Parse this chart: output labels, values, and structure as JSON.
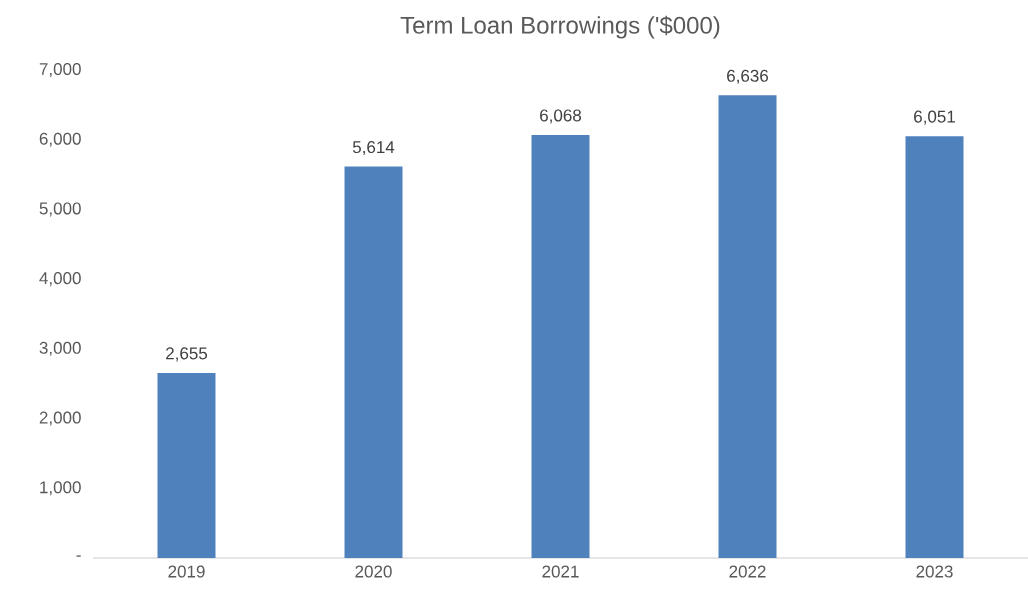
{
  "chart_data": {
    "type": "bar",
    "title": "Term Loan Borrowings ('$000)",
    "categories": [
      "2019",
      "2020",
      "2021",
      "2022",
      "2023"
    ],
    "values": [
      2655,
      5614,
      6068,
      6636,
      6051
    ],
    "value_labels": [
      "2,655",
      "5,614",
      "6,068",
      "6,636",
      "6,051"
    ],
    "color": "#4f81bd",
    "ylim": [
      0,
      7000
    ],
    "yticks": [
      {
        "value": 0,
        "label": "-"
      },
      {
        "value": 1000,
        "label": "1,000"
      },
      {
        "value": 2000,
        "label": "2,000"
      },
      {
        "value": 3000,
        "label": "3,000"
      },
      {
        "value": 4000,
        "label": "4,000"
      },
      {
        "value": 5000,
        "label": "5,000"
      },
      {
        "value": 6000,
        "label": "6,000"
      },
      {
        "value": 7000,
        "label": "7,000"
      }
    ]
  }
}
